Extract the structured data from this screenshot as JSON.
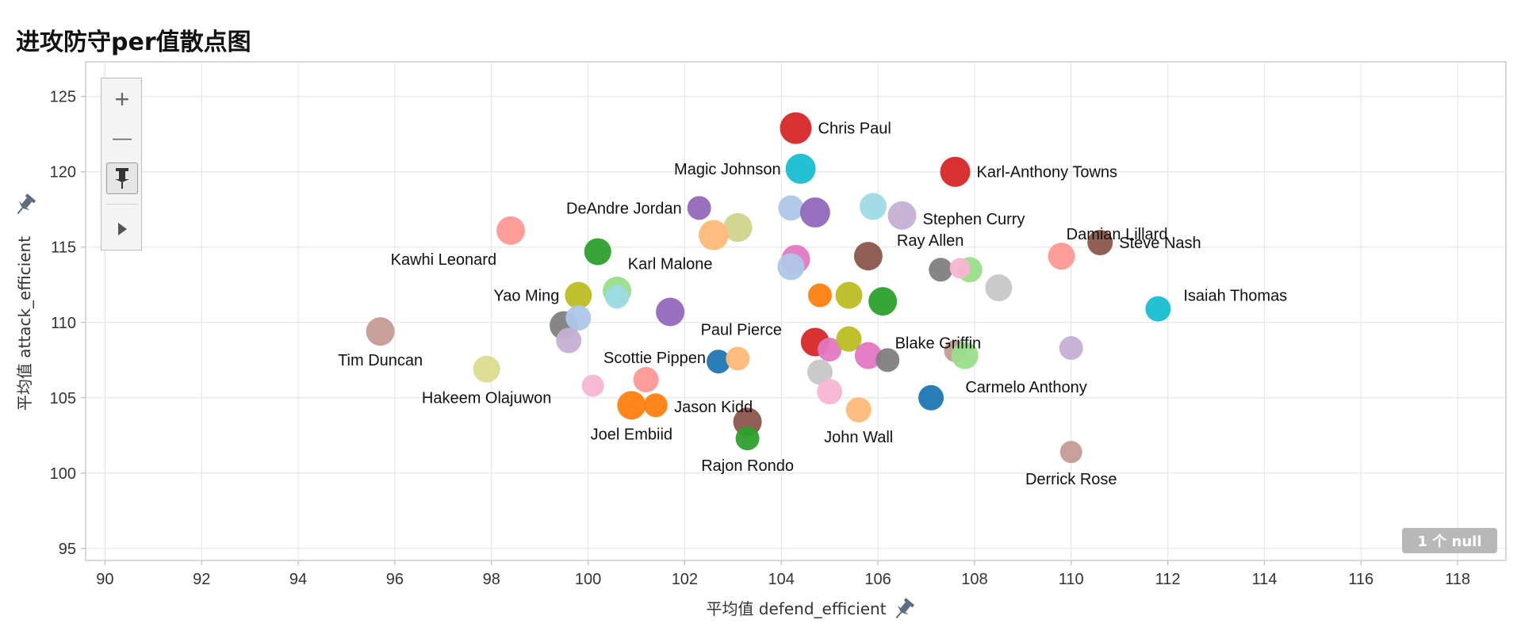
{
  "title": "进攻防守per值散点图",
  "null_badge": "1 个 null",
  "toolbar": {
    "zoom_in": "+",
    "zoom_out": "—",
    "pin": "pin-icon",
    "play": "play-icon"
  },
  "colors": {
    "grid": "#e6e6e6",
    "axis": "#cccccc",
    "pin": "#5b6b80"
  },
  "chart_data": {
    "type": "scatter",
    "title": "进攻防守per值散点图",
    "xlabel": "平均值 defend_efficient",
    "ylabel": "平均值 attack_efficient",
    "xlim": [
      89.6,
      119.0
    ],
    "ylim": [
      94.2,
      127.3
    ],
    "xticks": [
      90,
      92,
      94,
      96,
      98,
      100,
      102,
      104,
      106,
      108,
      110,
      112,
      114,
      116,
      118
    ],
    "yticks": [
      95,
      100,
      105,
      110,
      115,
      120,
      125
    ],
    "grid": true,
    "points": [
      {
        "x": 104.3,
        "y": 122.9,
        "color": "#d62728",
        "r": 20,
        "label": "Chris Paul"
      },
      {
        "x": 104.4,
        "y": 120.2,
        "color": "#17becf",
        "r": 19,
        "label": "Magic Johnson"
      },
      {
        "x": 107.6,
        "y": 120.0,
        "color": "#d62728",
        "r": 19,
        "label": "Karl-Anthony Towns"
      },
      {
        "x": 102.3,
        "y": 117.6,
        "color": "#9467bd",
        "r": 15,
        "label": "DeAndre Jordan"
      },
      {
        "x": 104.2,
        "y": 117.6,
        "color": "#aec7e8",
        "r": 16
      },
      {
        "x": 104.7,
        "y": 117.3,
        "color": "#9467bd",
        "r": 19
      },
      {
        "x": 105.9,
        "y": 117.7,
        "color": "#9edae5",
        "r": 17
      },
      {
        "x": 106.5,
        "y": 117.1,
        "color": "#c5b0d5",
        "r": 18,
        "label": "Stephen Curry"
      },
      {
        "x": 103.1,
        "y": 116.3,
        "color": "#1f77b4",
        "r": 18
      },
      {
        "x": 103.1,
        "y": 116.3,
        "color": "#dbdb8d",
        "r": 18
      },
      {
        "x": 102.6,
        "y": 115.8,
        "color": "#ffbb78",
        "r": 19
      },
      {
        "x": 98.4,
        "y": 116.1,
        "color": "#ff9896",
        "r": 18,
        "label": "Kawhi Leonard"
      },
      {
        "x": 100.2,
        "y": 114.7,
        "color": "#2ca02c",
        "r": 17,
        "label": "Karl Malone"
      },
      {
        "x": 104.3,
        "y": 114.2,
        "color": "#e377c2",
        "r": 18
      },
      {
        "x": 104.2,
        "y": 113.7,
        "color": "#aec7e8",
        "r": 17
      },
      {
        "x": 105.8,
        "y": 114.4,
        "color": "#8c564b",
        "r": 18,
        "label": "Ray Allen"
      },
      {
        "x": 110.6,
        "y": 115.3,
        "color": "#8c564b",
        "r": 16,
        "label": "Steve Nash"
      },
      {
        "x": 109.8,
        "y": 114.4,
        "color": "#ff9896",
        "r": 17,
        "label": "Damian Lillard"
      },
      {
        "x": 107.3,
        "y": 113.5,
        "color": "#7f7f7f",
        "r": 15
      },
      {
        "x": 107.9,
        "y": 113.5,
        "color": "#98df8a",
        "r": 16
      },
      {
        "x": 107.7,
        "y": 113.6,
        "color": "#f7b6d2",
        "r": 13
      },
      {
        "x": 108.5,
        "y": 112.3,
        "color": "#c7c7c7",
        "r": 17
      },
      {
        "x": 99.8,
        "y": 111.8,
        "color": "#bcbd22",
        "r": 17,
        "label": "Yao Ming"
      },
      {
        "x": 100.6,
        "y": 112.1,
        "color": "#98df8a",
        "r": 18
      },
      {
        "x": 100.6,
        "y": 111.7,
        "color": "#9edae5",
        "r": 15
      },
      {
        "x": 104.8,
        "y": 111.8,
        "color": "#ff7f0e",
        "r": 15
      },
      {
        "x": 105.4,
        "y": 111.8,
        "color": "#bcbd22",
        "r": 17
      },
      {
        "x": 106.1,
        "y": 111.4,
        "color": "#2ca02c",
        "r": 18
      },
      {
        "x": 101.7,
        "y": 110.7,
        "color": "#9467bd",
        "r": 18
      },
      {
        "x": 111.8,
        "y": 110.9,
        "color": "#17becf",
        "r": 16,
        "label": "Isaiah Thomas"
      },
      {
        "x": 99.5,
        "y": 109.8,
        "color": "#7f7f7f",
        "r": 18
      },
      {
        "x": 99.8,
        "y": 110.3,
        "color": "#aec7e8",
        "r": 16
      },
      {
        "x": 99.6,
        "y": 108.8,
        "color": "#c5b0d5",
        "r": 16
      },
      {
        "x": 95.7,
        "y": 109.4,
        "color": "#c49c94",
        "r": 18,
        "label": "Tim Duncan"
      },
      {
        "x": 104.7,
        "y": 108.7,
        "color": "#d62728",
        "r": 18,
        "label": "Paul Pierce"
      },
      {
        "x": 105.0,
        "y": 108.2,
        "color": "#e377c2",
        "r": 15
      },
      {
        "x": 105.4,
        "y": 108.9,
        "color": "#bcbd22",
        "r": 16
      },
      {
        "x": 105.8,
        "y": 107.8,
        "color": "#e377c2",
        "r": 17,
        "label": "Blake Griffin"
      },
      {
        "x": 106.2,
        "y": 107.5,
        "color": "#7f7f7f",
        "r": 15
      },
      {
        "x": 107.6,
        "y": 108.1,
        "color": "#c49c94",
        "r": 14
      },
      {
        "x": 107.8,
        "y": 107.8,
        "color": "#98df8a",
        "r": 17
      },
      {
        "x": 110.0,
        "y": 108.3,
        "color": "#c5b0d5",
        "r": 15
      },
      {
        "x": 102.7,
        "y": 107.4,
        "color": "#1f77b4",
        "r": 15,
        "label": "Scottie Pippen"
      },
      {
        "x": 103.1,
        "y": 107.6,
        "color": "#ffbb78",
        "r": 15
      },
      {
        "x": 97.9,
        "y": 106.9,
        "color": "#dbdb8d",
        "r": 17,
        "label": "Hakeem Olajuwon"
      },
      {
        "x": 104.8,
        "y": 106.7,
        "color": "#c7c7c7",
        "r": 16
      },
      {
        "x": 101.2,
        "y": 106.2,
        "color": "#ff9896",
        "r": 16,
        "label": "Jason Kidd"
      },
      {
        "x": 100.1,
        "y": 105.8,
        "color": "#f7b6d2",
        "r": 14
      },
      {
        "x": 105.0,
        "y": 105.4,
        "color": "#f7b6d2",
        "r": 16
      },
      {
        "x": 107.1,
        "y": 105.0,
        "color": "#1f77b4",
        "r": 16,
        "label": "Carmelo Anthony"
      },
      {
        "x": 100.9,
        "y": 104.5,
        "color": "#ff7f0e",
        "r": 18,
        "label": "Joel Embiid"
      },
      {
        "x": 101.4,
        "y": 104.5,
        "color": "#ff7f0e",
        "r": 15
      },
      {
        "x": 105.6,
        "y": 104.2,
        "color": "#ffbb78",
        "r": 16,
        "label": "John Wall"
      },
      {
        "x": 103.3,
        "y": 103.4,
        "color": "#8c564b",
        "r": 18
      },
      {
        "x": 103.3,
        "y": 102.3,
        "color": "#2ca02c",
        "r": 15,
        "label": "Rajon Rondo"
      },
      {
        "x": 110.0,
        "y": 101.4,
        "color": "#c49c94",
        "r": 14,
        "label": "Derrick Rose"
      }
    ]
  }
}
